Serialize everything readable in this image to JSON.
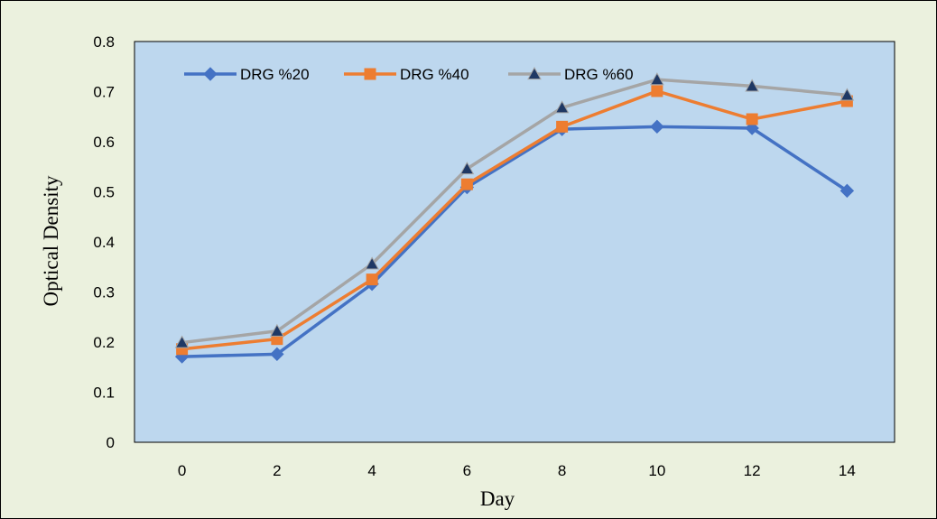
{
  "chart_data": {
    "type": "line",
    "title": "",
    "xlabel": "Day",
    "ylabel": "Optical Density",
    "x": [
      0,
      2,
      4,
      6,
      8,
      10,
      12,
      14
    ],
    "x_tick_labels": [
      "0",
      "2",
      "4",
      "6",
      "8",
      "10",
      "12",
      "14"
    ],
    "y_tick_labels": [
      "0",
      "0.1",
      "0.2",
      "0.3",
      "0.4",
      "0.5",
      "0.6",
      "0.7",
      "0.8"
    ],
    "ylim": [
      0,
      0.8
    ],
    "grid": false,
    "legend_position": "top",
    "plot_background": "#bdd7ee",
    "chart_background": "#ebf1de",
    "series": [
      {
        "name": "DRG %20",
        "color": "#4472c4",
        "marker": "diamond",
        "values": [
          0.171,
          0.176,
          0.316,
          0.509,
          0.625,
          0.63,
          0.627,
          0.502
        ]
      },
      {
        "name": "DRG %40",
        "color": "#ed7d31",
        "marker": "square",
        "values": [
          0.186,
          0.206,
          0.325,
          0.515,
          0.63,
          0.701,
          0.645,
          0.681
        ]
      },
      {
        "name": "DRG %60",
        "color": "#a5a5a5",
        "marker": "triangle",
        "marker_color": "#1f3864",
        "values": [
          0.199,
          0.222,
          0.356,
          0.546,
          0.668,
          0.724,
          0.711,
          0.693
        ]
      }
    ]
  }
}
